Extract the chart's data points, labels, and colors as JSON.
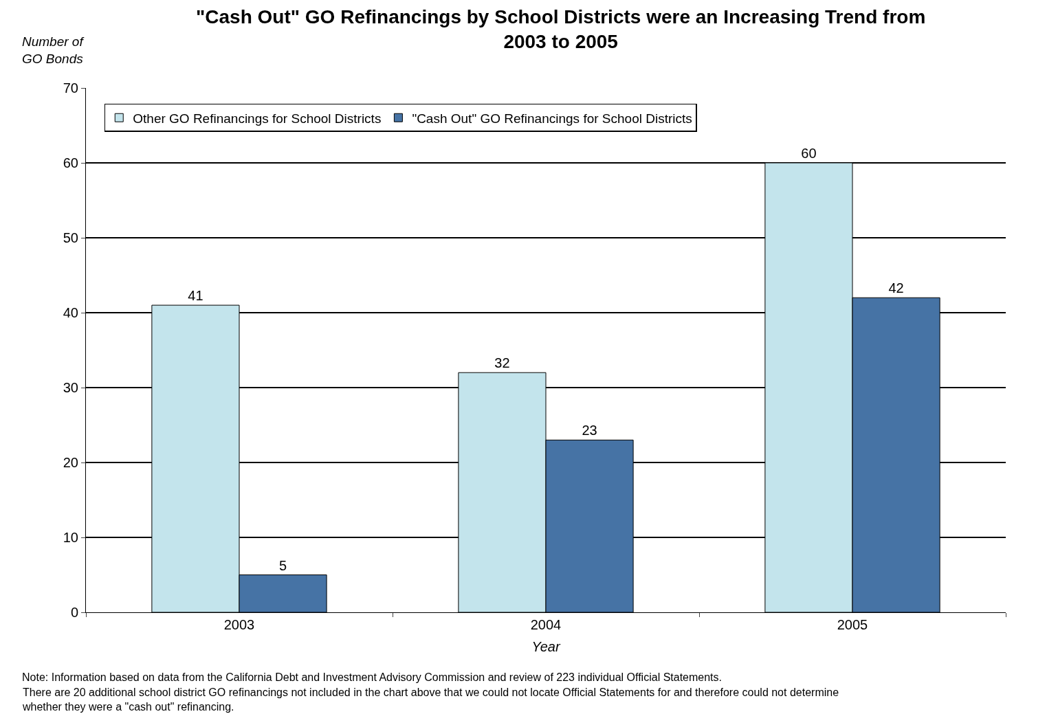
{
  "chart_data": {
    "type": "bar",
    "title": "\"Cash Out\" GO Refinancings by School Districts were an Increasing Trend from\n2003 to 2005",
    "ylabel": "Number of\nGO Bonds",
    "xlabel": "Year",
    "categories": [
      "2003",
      "2004",
      "2005"
    ],
    "series": [
      {
        "name": "Other GO Refinancings for School Districts",
        "color": "#c3e4ec",
        "values": [
          41,
          32,
          60
        ]
      },
      {
        "name": "\"Cash Out\" GO Refinancings for School Districts",
        "color": "#4673a5",
        "values": [
          5,
          23,
          42
        ]
      }
    ],
    "ylim": [
      0,
      70
    ],
    "yticks": [
      0,
      10,
      20,
      30,
      40,
      50,
      60,
      70
    ],
    "grid": "y",
    "legend": "top left",
    "data_labels": true,
    "annotations": [
      "Note: Information based on data from the California Debt and Investment Advisory Commission and review of 223 individual Official Statements.",
      "There are 20 additional school district GO refinancings not included in the chart above that we could not locate Official Statements for and therefore could not determine\nwhether they were a \"cash out\" refinancing."
    ]
  }
}
